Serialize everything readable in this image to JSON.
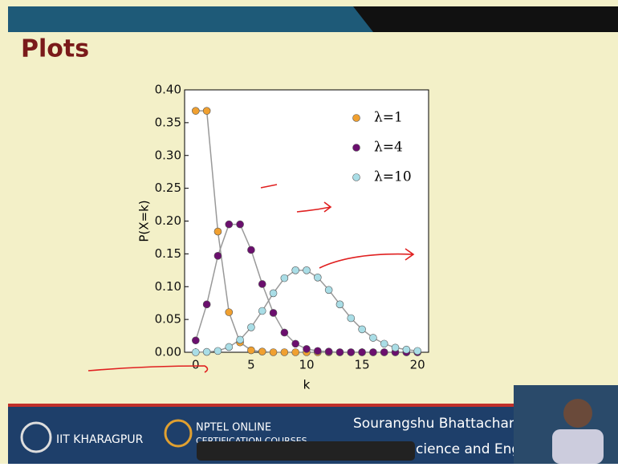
{
  "slide": {
    "title": "Plots",
    "footer": {
      "institute": "IIT KHARAGPUR",
      "nptel_line1": "NPTEL ONLINE",
      "nptel_line2": "CERTIFICATION COURSES",
      "speaker": "Sourangshu Bhattacharya",
      "department": "cience and Engg"
    }
  },
  "chart_data": {
    "type": "line",
    "x_label": "k",
    "y_label": "P(X=k)",
    "x": [
      0,
      1,
      2,
      3,
      4,
      5,
      6,
      7,
      8,
      9,
      10,
      11,
      12,
      13,
      14,
      15,
      16,
      17,
      18,
      19,
      20
    ],
    "series": [
      {
        "name": "λ=1",
        "color": "#f0a030",
        "values": [
          0.368,
          0.368,
          0.184,
          0.061,
          0.015,
          0.003,
          0.001,
          0,
          0,
          0,
          0,
          0,
          0,
          0,
          0,
          0,
          0,
          0,
          0,
          0,
          0
        ]
      },
      {
        "name": "λ=4",
        "color": "#6b0f6e",
        "values": [
          0.018,
          0.073,
          0.147,
          0.195,
          0.195,
          0.156,
          0.104,
          0.06,
          0.03,
          0.013,
          0.005,
          0.002,
          0.001,
          0,
          0,
          0,
          0,
          0,
          0,
          0,
          0
        ]
      },
      {
        "name": "λ=10",
        "color": "#a9dde6",
        "values": [
          0,
          0.0005,
          0.002,
          0.008,
          0.019,
          0.038,
          0.063,
          0.09,
          0.113,
          0.125,
          0.125,
          0.114,
          0.095,
          0.073,
          0.052,
          0.035,
          0.022,
          0.013,
          0.007,
          0.004,
          0.002
        ]
      }
    ],
    "xlim": [
      -1,
      21
    ],
    "ylim": [
      0,
      0.4
    ],
    "xticks": [
      0,
      5,
      10,
      15,
      20
    ],
    "yticks": [
      {
        "value": 0,
        "label": "0.00"
      },
      {
        "value": 0.05,
        "label": "0.05"
      },
      {
        "value": 0.1,
        "label": "0.10"
      },
      {
        "value": 0.15,
        "label": "0.15"
      },
      {
        "value": 0.2,
        "label": "0.20"
      },
      {
        "value": 0.25,
        "label": "0.25"
      },
      {
        "value": 0.3,
        "label": "0.30"
      },
      {
        "value": 0.35,
        "label": "0.35"
      },
      {
        "value": 0.4,
        "label": "0.40"
      }
    ],
    "legend": "upper right",
    "line_color": "#999999"
  }
}
